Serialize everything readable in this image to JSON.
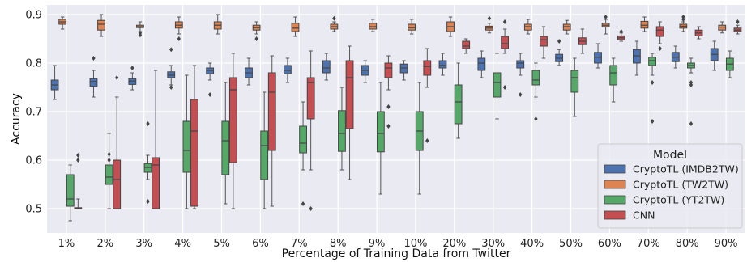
{
  "chart_data": {
    "type": "box",
    "xlabel": "Percentage of Training Data from Twitter",
    "ylabel": "Accuracy",
    "ylim": [
      0.45,
      0.92
    ],
    "yticks": [
      0.5,
      0.6,
      0.7,
      0.8,
      0.9
    ],
    "grid": true,
    "legend": {
      "title": "Model",
      "placement": "lower-right"
    },
    "categories": [
      "1%",
      "2%",
      "3%",
      "4%",
      "5%",
      "6%",
      "7%",
      "8%",
      "9%",
      "10%",
      "20%",
      "30%",
      "40%",
      "50%",
      "60%",
      "70%",
      "80%",
      "90%"
    ],
    "series": [
      {
        "name": "CryptoTL (IMDB2TW)",
        "color": "#4c72b0",
        "boxes": [
          {
            "min": 0.725,
            "q1": 0.745,
            "median": 0.755,
            "q3": 0.765,
            "max": 0.795,
            "outliers": []
          },
          {
            "min": 0.73,
            "q1": 0.752,
            "median": 0.762,
            "q3": 0.768,
            "max": 0.785,
            "outliers": [
              0.81
            ]
          },
          {
            "min": 0.745,
            "q1": 0.756,
            "median": 0.763,
            "q3": 0.768,
            "max": 0.78,
            "outliers": [
              0.79
            ]
          },
          {
            "min": 0.755,
            "q1": 0.77,
            "median": 0.775,
            "q3": 0.782,
            "max": 0.795,
            "outliers": [
              0.828,
              0.75
            ]
          },
          {
            "min": 0.765,
            "q1": 0.778,
            "median": 0.785,
            "q3": 0.79,
            "max": 0.8,
            "outliers": [
              0.735
            ]
          },
          {
            "min": 0.755,
            "q1": 0.77,
            "median": 0.78,
            "q3": 0.79,
            "max": 0.81,
            "outliers": []
          },
          {
            "min": 0.76,
            "q1": 0.778,
            "median": 0.785,
            "q3": 0.795,
            "max": 0.81,
            "outliers": []
          },
          {
            "min": 0.765,
            "q1": 0.78,
            "median": 0.79,
            "q3": 0.805,
            "max": 0.82,
            "outliers": []
          },
          {
            "min": 0.76,
            "q1": 0.775,
            "median": 0.785,
            "q3": 0.795,
            "max": 0.805,
            "outliers": []
          },
          {
            "min": 0.765,
            "q1": 0.78,
            "median": 0.79,
            "q3": 0.798,
            "max": 0.805,
            "outliers": []
          },
          {
            "min": 0.775,
            "q1": 0.79,
            "median": 0.795,
            "q3": 0.805,
            "max": 0.82,
            "outliers": []
          },
          {
            "min": 0.77,
            "q1": 0.785,
            "median": 0.8,
            "q3": 0.81,
            "max": 0.825,
            "outliers": []
          },
          {
            "min": 0.775,
            "q1": 0.79,
            "median": 0.8,
            "q3": 0.805,
            "max": 0.82,
            "outliers": [
              0.735
            ]
          },
          {
            "min": 0.795,
            "q1": 0.803,
            "median": 0.81,
            "q3": 0.818,
            "max": 0.828,
            "outliers": [
              0.845
            ]
          },
          {
            "min": 0.79,
            "q1": 0.8,
            "median": 0.812,
            "q3": 0.822,
            "max": 0.84,
            "outliers": []
          },
          {
            "min": 0.775,
            "q1": 0.8,
            "median": 0.815,
            "q3": 0.828,
            "max": 0.845,
            "outliers": []
          },
          {
            "min": 0.79,
            "q1": 0.803,
            "median": 0.812,
            "q3": 0.822,
            "max": 0.835,
            "outliers": []
          },
          {
            "min": 0.785,
            "q1": 0.805,
            "median": 0.818,
            "q3": 0.83,
            "max": 0.845,
            "outliers": []
          }
        ]
      },
      {
        "name": "CryptoTL (TW2TW)",
        "color": "#dd8452",
        "boxes": [
          {
            "min": 0.87,
            "q1": 0.88,
            "median": 0.885,
            "q3": 0.89,
            "max": 0.895,
            "outliers": []
          },
          {
            "min": 0.855,
            "q1": 0.868,
            "median": 0.88,
            "q3": 0.888,
            "max": 0.9,
            "outliers": []
          },
          {
            "min": 0.865,
            "q1": 0.873,
            "median": 0.875,
            "q3": 0.878,
            "max": 0.885,
            "outliers": [
              0.862,
              0.858
            ]
          },
          {
            "min": 0.86,
            "q1": 0.872,
            "median": 0.878,
            "q3": 0.885,
            "max": 0.895,
            "outliers": [
              0.85
            ]
          },
          {
            "min": 0.86,
            "q1": 0.87,
            "median": 0.878,
            "q3": 0.885,
            "max": 0.9,
            "outliers": []
          },
          {
            "min": 0.86,
            "q1": 0.868,
            "median": 0.873,
            "q3": 0.878,
            "max": 0.885,
            "outliers": [
              0.85
            ]
          },
          {
            "min": 0.855,
            "q1": 0.865,
            "median": 0.872,
            "q3": 0.882,
            "max": 0.895,
            "outliers": []
          },
          {
            "min": 0.865,
            "q1": 0.87,
            "median": 0.875,
            "q3": 0.88,
            "max": 0.885,
            "outliers": [
              0.892
            ]
          },
          {
            "min": 0.865,
            "q1": 0.87,
            "median": 0.875,
            "q3": 0.882,
            "max": 0.89,
            "outliers": []
          },
          {
            "min": 0.86,
            "q1": 0.868,
            "median": 0.873,
            "q3": 0.88,
            "max": 0.89,
            "outliers": []
          },
          {
            "min": 0.855,
            "q1": 0.865,
            "median": 0.875,
            "q3": 0.885,
            "max": 0.895,
            "outliers": []
          },
          {
            "min": 0.862,
            "q1": 0.868,
            "median": 0.872,
            "q3": 0.876,
            "max": 0.882,
            "outliers": [
              0.892
            ]
          },
          {
            "min": 0.86,
            "q1": 0.868,
            "median": 0.875,
            "q3": 0.88,
            "max": 0.89,
            "outliers": []
          },
          {
            "min": 0.86,
            "q1": 0.868,
            "median": 0.875,
            "q3": 0.88,
            "max": 0.888,
            "outliers": []
          },
          {
            "min": 0.86,
            "q1": 0.875,
            "median": 0.878,
            "q3": 0.882,
            "max": 0.89,
            "outliers": [
              0.895
            ]
          },
          {
            "min": 0.865,
            "q1": 0.872,
            "median": 0.878,
            "q3": 0.886,
            "max": 0.895,
            "outliers": []
          },
          {
            "min": 0.865,
            "q1": 0.872,
            "median": 0.876,
            "q3": 0.88,
            "max": 0.885,
            "outliers": [
              0.895,
              0.89
            ]
          },
          {
            "min": 0.862,
            "q1": 0.868,
            "median": 0.874,
            "q3": 0.878,
            "max": 0.885,
            "outliers": []
          }
        ]
      },
      {
        "name": "CryptoTL (YT2TW)",
        "color": "#55a868",
        "boxes": [
          {
            "min": 0.475,
            "q1": 0.505,
            "median": 0.52,
            "q3": 0.57,
            "max": 0.59,
            "outliers": []
          },
          {
            "min": 0.5,
            "q1": 0.55,
            "median": 0.565,
            "q3": 0.59,
            "max": 0.655,
            "outliers": [
              0.612,
              0.6
            ]
          },
          {
            "min": 0.56,
            "q1": 0.575,
            "median": 0.585,
            "q3": 0.593,
            "max": 0.61,
            "outliers": [
              0.675,
              0.515
            ]
          },
          {
            "min": 0.5,
            "q1": 0.575,
            "median": 0.62,
            "q3": 0.68,
            "max": 0.775,
            "outliers": []
          },
          {
            "min": 0.51,
            "q1": 0.57,
            "median": 0.64,
            "q3": 0.68,
            "max": 0.76,
            "outliers": []
          },
          {
            "min": 0.5,
            "q1": 0.56,
            "median": 0.63,
            "q3": 0.66,
            "max": 0.74,
            "outliers": []
          },
          {
            "min": 0.58,
            "q1": 0.615,
            "median": 0.635,
            "q3": 0.67,
            "max": 0.72,
            "outliers": [
              0.51
            ]
          },
          {
            "min": 0.58,
            "q1": 0.618,
            "median": 0.655,
            "q3": 0.702,
            "max": 0.75,
            "outliers": []
          },
          {
            "min": 0.53,
            "q1": 0.617,
            "median": 0.655,
            "q3": 0.7,
            "max": 0.76,
            "outliers": []
          },
          {
            "min": 0.53,
            "q1": 0.62,
            "median": 0.66,
            "q3": 0.7,
            "max": 0.76,
            "outliers": []
          },
          {
            "min": 0.645,
            "q1": 0.675,
            "median": 0.72,
            "q3": 0.755,
            "max": 0.8,
            "outliers": []
          },
          {
            "min": 0.685,
            "q1": 0.73,
            "median": 0.76,
            "q3": 0.78,
            "max": 0.82,
            "outliers": []
          },
          {
            "min": 0.73,
            "q1": 0.755,
            "median": 0.765,
            "q3": 0.785,
            "max": 0.8,
            "outliers": [
              0.685
            ]
          },
          {
            "min": 0.69,
            "q1": 0.74,
            "median": 0.77,
            "q3": 0.785,
            "max": 0.81,
            "outliers": []
          },
          {
            "min": 0.72,
            "q1": 0.755,
            "median": 0.78,
            "q3": 0.795,
            "max": 0.81,
            "outliers": []
          },
          {
            "min": 0.775,
            "q1": 0.795,
            "median": 0.805,
            "q3": 0.812,
            "max": 0.82,
            "outliers": [
              0.68,
              0.76
            ]
          },
          {
            "min": 0.78,
            "q1": 0.79,
            "median": 0.795,
            "q3": 0.8,
            "max": 0.81,
            "outliers": [
              0.755,
              0.76,
              0.675
            ]
          },
          {
            "min": 0.77,
            "q1": 0.785,
            "median": 0.798,
            "q3": 0.81,
            "max": 0.825,
            "outliers": []
          }
        ]
      },
      {
        "name": "CNN",
        "color": "#c44e52",
        "boxes": [
          {
            "min": 0.5,
            "q1": 0.5,
            "median": 0.5,
            "q3": 0.502,
            "max": 0.52,
            "outliers": [
              0.61,
              0.6
            ]
          },
          {
            "min": 0.5,
            "q1": 0.5,
            "median": 0.56,
            "q3": 0.6,
            "max": 0.73,
            "outliers": [
              0.77
            ]
          },
          {
            "min": 0.5,
            "q1": 0.5,
            "median": 0.59,
            "q3": 0.605,
            "max": 0.785,
            "outliers": []
          },
          {
            "min": 0.5,
            "q1": 0.505,
            "median": 0.66,
            "q3": 0.725,
            "max": 0.795,
            "outliers": []
          },
          {
            "min": 0.5,
            "q1": 0.595,
            "median": 0.745,
            "q3": 0.77,
            "max": 0.82,
            "outliers": []
          },
          {
            "min": 0.505,
            "q1": 0.62,
            "median": 0.74,
            "q3": 0.78,
            "max": 0.815,
            "outliers": []
          },
          {
            "min": 0.58,
            "q1": 0.685,
            "median": 0.76,
            "q3": 0.77,
            "max": 0.825,
            "outliers": [
              0.5
            ]
          },
          {
            "min": 0.56,
            "q1": 0.665,
            "median": 0.77,
            "q3": 0.805,
            "max": 0.835,
            "outliers": []
          },
          {
            "min": 0.745,
            "q1": 0.77,
            "median": 0.79,
            "q3": 0.8,
            "max": 0.815,
            "outliers": [
              0.67,
              0.71
            ]
          },
          {
            "min": 0.75,
            "q1": 0.775,
            "median": 0.793,
            "q3": 0.805,
            "max": 0.83,
            "outliers": [
              0.64
            ]
          },
          {
            "min": 0.82,
            "q1": 0.83,
            "median": 0.835,
            "q3": 0.845,
            "max": 0.85,
            "outliers": []
          },
          {
            "min": 0.82,
            "q1": 0.83,
            "median": 0.84,
            "q3": 0.855,
            "max": 0.87,
            "outliers": [
              0.885,
              0.75
            ]
          },
          {
            "min": 0.81,
            "q1": 0.835,
            "median": 0.848,
            "q3": 0.855,
            "max": 0.875,
            "outliers": []
          },
          {
            "min": 0.82,
            "q1": 0.838,
            "median": 0.845,
            "q3": 0.852,
            "max": 0.87,
            "outliers": []
          },
          {
            "min": 0.845,
            "q1": 0.848,
            "median": 0.852,
            "q3": 0.856,
            "max": 0.862,
            "outliers": [
              0.865
            ]
          },
          {
            "min": 0.84,
            "q1": 0.855,
            "median": 0.868,
            "q3": 0.875,
            "max": 0.885,
            "outliers": [
              0.83
            ]
          },
          {
            "min": 0.85,
            "q1": 0.856,
            "median": 0.862,
            "q3": 0.868,
            "max": 0.875,
            "outliers": []
          },
          {
            "min": 0.86,
            "q1": 0.865,
            "median": 0.868,
            "q3": 0.872,
            "max": 0.878,
            "outliers": [
              0.885
            ]
          }
        ]
      }
    ]
  }
}
